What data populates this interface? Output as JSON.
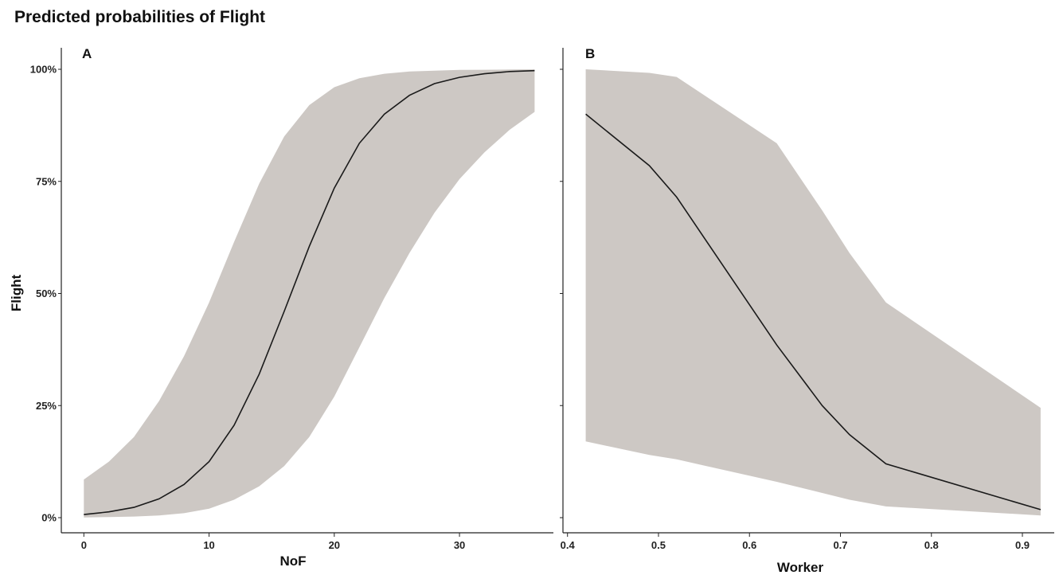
{
  "title": "Predicted probabilities of Flight",
  "colors": {
    "ribbon": "#cdc8c4",
    "line": "#1a1a1a"
  },
  "chart_data": [
    {
      "panel": "A",
      "type": "line",
      "xlabel": "NoF",
      "ylabel": "Flight",
      "xlim": [
        -1.8,
        37.5
      ],
      "ylim": [
        0,
        100
      ],
      "x_ticks": [
        0,
        10,
        20,
        30
      ],
      "y_ticks": [
        0,
        25,
        50,
        75,
        100
      ],
      "y_tick_labels": [
        "0%",
        "25%",
        "50%",
        "75%",
        "100%"
      ],
      "grid": false,
      "series": [
        {
          "x": [
            0,
            2,
            4,
            6,
            8,
            10,
            12,
            14,
            16,
            18,
            20,
            22,
            24,
            26,
            28,
            30,
            32,
            34,
            36
          ],
          "y": [
            0.7,
            1.3,
            2.3,
            4.2,
            7.4,
            12.5,
            20.6,
            32,
            46,
            60.5,
            73.5,
            83.5,
            90,
            94.2,
            96.8,
            98.2,
            99.0,
            99.5,
            99.7
          ],
          "lower": [
            0.05,
            0.12,
            0.25,
            0.5,
            1.0,
            2.0,
            4.0,
            7.0,
            11.5,
            18,
            27,
            38,
            49,
            59,
            68,
            75.5,
            81.5,
            86.5,
            90.5
          ],
          "upper": [
            8.5,
            12.5,
            18,
            26,
            36,
            48,
            61.5,
            74.5,
            85,
            92,
            96,
            98,
            99,
            99.5,
            99.7,
            99.85,
            99.9,
            99.95,
            99.98
          ]
        }
      ]
    },
    {
      "panel": "B",
      "type": "line",
      "xlabel": "Worker",
      "ylabel": "",
      "xlim": [
        0.395,
        0.935
      ],
      "ylim": [
        0,
        100
      ],
      "x_ticks": [
        0.4,
        0.5,
        0.6,
        0.7,
        0.8,
        0.9
      ],
      "y_ticks": [
        0,
        25,
        50,
        75,
        100
      ],
      "grid": false,
      "series": [
        {
          "x": [
            0.42,
            0.49,
            0.52,
            0.63,
            0.68,
            0.71,
            0.75,
            0.92
          ],
          "y": [
            90,
            78.5,
            71.5,
            38.5,
            25,
            18.5,
            12,
            1.8
          ],
          "lower": [
            17,
            14,
            13,
            8,
            5.5,
            4,
            2.5,
            0.5
          ],
          "upper": [
            100,
            99.2,
            98.3,
            83.5,
            68.5,
            59,
            48,
            24.5
          ]
        }
      ]
    }
  ]
}
